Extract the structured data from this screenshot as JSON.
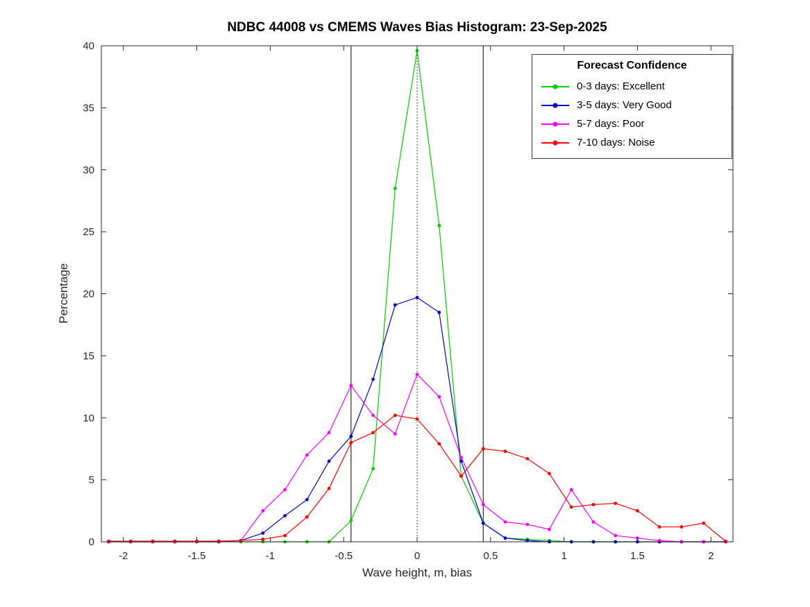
{
  "chart_data": {
    "type": "line",
    "title": "NDBC 44008 vs CMEMS Waves Bias Histogram: 23-Sep-2025",
    "xlabel": "Wave height, m, bias",
    "ylabel": "Percentage",
    "xlim": [
      -2.15,
      2.15
    ],
    "ylim": [
      0,
      40
    ],
    "xticks": [
      -2,
      -1.5,
      -1,
      -0.5,
      0,
      0.5,
      1,
      1.5,
      2
    ],
    "xtick_labels": [
      "-2",
      "-1.5",
      "-1",
      "-0.5",
      "0",
      "0.5",
      "1",
      "1.5",
      "2"
    ],
    "yticks": [
      0,
      5,
      10,
      15,
      20,
      25,
      30,
      35,
      40
    ],
    "grid": false,
    "axis_color": "#262626",
    "vlines": [
      {
        "x": -0.45,
        "style": "solid",
        "color": "#000000"
      },
      {
        "x": 0,
        "style": "dotted",
        "color": "#000000"
      },
      {
        "x": 0.45,
        "style": "solid",
        "color": "#000000"
      }
    ],
    "legend": {
      "title": "Forecast Confidence",
      "position": "top-right"
    },
    "x": [
      -2.1,
      -1.95,
      -1.8,
      -1.65,
      -1.5,
      -1.35,
      -1.2,
      -1.05,
      -0.9,
      -0.75,
      -0.6,
      -0.45,
      -0.3,
      -0.15,
      0,
      0.15,
      0.3,
      0.45,
      0.6,
      0.75,
      0.9,
      1.05,
      1.2,
      1.35,
      1.5,
      1.65,
      1.8,
      1.95,
      2.1
    ],
    "series": [
      {
        "label": "0-3 days: Excellent",
        "color": "#00cc00",
        "values": [
          0,
          0,
          0,
          0,
          0,
          0,
          0,
          0,
          0,
          0,
          0,
          1.7,
          5.9,
          28.5,
          39.6,
          25.5,
          5.3,
          1.5,
          0.3,
          0.2,
          0.1,
          0,
          0,
          0,
          0,
          0,
          0,
          0,
          0
        ]
      },
      {
        "label": "3-5 days: Very Good",
        "color": "#0000cc",
        "values": [
          0,
          0,
          0,
          0,
          0,
          0,
          0.1,
          0.7,
          2.1,
          3.4,
          6.5,
          8.5,
          13.1,
          19.1,
          19.7,
          18.5,
          6.5,
          1.5,
          0.3,
          0.1,
          0,
          0,
          0,
          0,
          0,
          0,
          0,
          0,
          0
        ]
      },
      {
        "label": "5-7 days: Poor",
        "color": "#ff00ff",
        "values": [
          0,
          0,
          0,
          0,
          0,
          0,
          0.1,
          2.5,
          4.2,
          7.0,
          8.8,
          12.6,
          10.2,
          8.7,
          13.5,
          11.7,
          6.8,
          3.0,
          1.6,
          1.4,
          1.0,
          4.2,
          1.6,
          0.5,
          0.3,
          0.1,
          0,
          0,
          0
        ]
      },
      {
        "label": "7-10 days: Noise",
        "color": "#ff0000",
        "values": [
          0.05,
          0.05,
          0.05,
          0.05,
          0.05,
          0.05,
          0.1,
          0.2,
          0.5,
          2.0,
          4.3,
          8.0,
          8.8,
          10.2,
          9.9,
          7.9,
          5.3,
          7.5,
          7.3,
          6.7,
          5.5,
          2.8,
          3.0,
          3.1,
          2.5,
          1.2,
          1.2,
          1.5,
          0.05
        ]
      }
    ]
  }
}
